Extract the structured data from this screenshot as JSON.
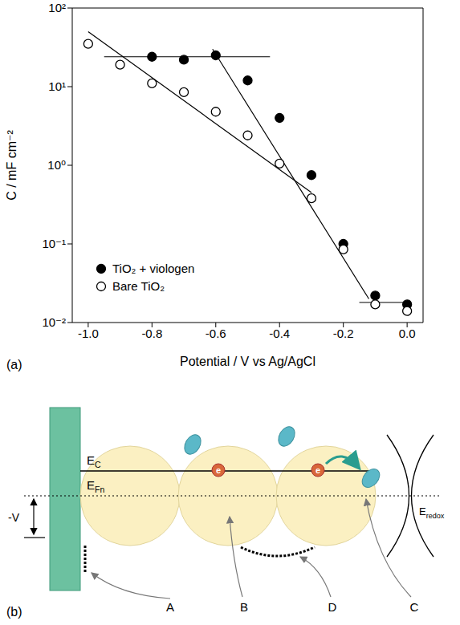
{
  "chart_data": {
    "type": "scatter",
    "annotations": [
      "(a)"
    ],
    "x_label": "Potential / V vs Ag/AgCl",
    "y_label": "C / mF cm⁻²",
    "log": "y",
    "grid": false,
    "legend": "lower left",
    "xlim": [
      -1.05,
      0.05
    ],
    "xticks": [
      {
        "value": -1.0,
        "label": "-1.0"
      },
      -0.8,
      -0.6,
      -0.4,
      -0.2,
      {
        "value": 0,
        "label": "0.0"
      }
    ],
    "ylim": [
      0.01,
      100
    ],
    "yticks": [
      {
        "value": 0.01,
        "label": "10⁻²"
      },
      {
        "value": 0.1,
        "label": "10⁻¹"
      },
      {
        "value": 1,
        "label": "10⁰"
      },
      {
        "value": 10,
        "label": "10¹"
      },
      {
        "value": 100,
        "label": "10²"
      }
    ],
    "series": [
      {
        "name": "TiO₂ + viologen",
        "color": "#000000",
        "marker": "filled circle",
        "x": [
          -0.8,
          -0.7,
          -0.6,
          -0.5,
          -0.4,
          -0.3,
          -0.2,
          -0.1,
          0.0
        ],
        "values": [
          24,
          22,
          25,
          12,
          4,
          0.75,
          0.1,
          0.022,
          0.017
        ]
      },
      {
        "name": "Bare TiO₂",
        "color": "#000000",
        "marker": "open circle",
        "x": [
          -1.0,
          -0.9,
          -0.8,
          -0.7,
          -0.6,
          -0.5,
          -0.4,
          -0.3,
          -0.2,
          -0.1,
          0.0
        ],
        "values": [
          35,
          19,
          11,
          8.5,
          4.8,
          2.4,
          1.05,
          0.38,
          0.085,
          0.017,
          0.014
        ]
      }
    ],
    "fit_lines": [
      {
        "type": "line",
        "color": "#000000",
        "line_style": "solid",
        "x": [
          -1.0,
          -0.3
        ],
        "values": [
          50,
          0.45
        ]
      },
      {
        "type": "line",
        "color": "#000000",
        "line_style": "solid",
        "x": [
          -0.95,
          -0.43
        ],
        "values": [
          24,
          24
        ]
      },
      {
        "type": "line",
        "color": "#000000",
        "line_style": "solid",
        "x": [
          -0.61,
          -0.12
        ],
        "values": [
          30,
          0.02
        ]
      },
      {
        "type": "line",
        "color": "#000000",
        "line_style": "solid",
        "x": [
          -0.15,
          0.0
        ],
        "values": [
          0.018,
          0.018
        ]
      }
    ]
  },
  "diagram": {
    "panel_label": "(b)",
    "conduction_band": {
      "text": "E",
      "subscript": "C"
    },
    "fermi_level": {
      "text": "E",
      "subscript": "Fn"
    },
    "redox_level": {
      "text": "E",
      "subscript": "redox"
    },
    "bias": "-V",
    "electron": "e",
    "callouts": [
      "A",
      "B",
      "D",
      "C"
    ]
  }
}
